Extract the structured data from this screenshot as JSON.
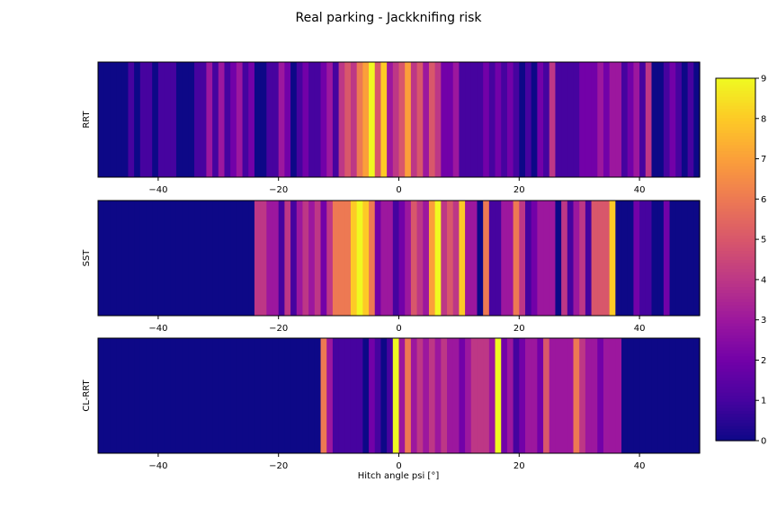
{
  "chart_data": {
    "type": "heatmap",
    "title": "Real parking - Jackknifing risk",
    "xlabel": "Hitch angle psi [°]",
    "xlim": [
      -50,
      50
    ],
    "xticks": [
      -40,
      -20,
      0,
      20,
      40
    ],
    "bin_width": 1,
    "colormap": "plasma",
    "colorbar": {
      "min": 0,
      "max": 9,
      "ticks": [
        0,
        1,
        2,
        3,
        4,
        5,
        6,
        7,
        8,
        9
      ]
    },
    "panels": [
      {
        "name": "RRT",
        "values": [
          0,
          0,
          0,
          0,
          0,
          1,
          0,
          1,
          1,
          0,
          1,
          1,
          1,
          0,
          0,
          0,
          1,
          1,
          3,
          1,
          3,
          1,
          2,
          3,
          1,
          2,
          0,
          0,
          1,
          1,
          3,
          2,
          0,
          1,
          2,
          1,
          1,
          2,
          3,
          1,
          4,
          5,
          4,
          6,
          7,
          9,
          5,
          8,
          3,
          4,
          5,
          7,
          4,
          5,
          3,
          5,
          4,
          2,
          2,
          3,
          1,
          1,
          1,
          1,
          2,
          1,
          2,
          1,
          2,
          1,
          0,
          1,
          0,
          2,
          1,
          4,
          1,
          1,
          1,
          1,
          2,
          2,
          2,
          3,
          2,
          3,
          3,
          1,
          2,
          3,
          1,
          4,
          0,
          0,
          1,
          2,
          1,
          0,
          1,
          0
        ]
      },
      {
        "name": "SST",
        "values": [
          0,
          0,
          0,
          0,
          0,
          0,
          0,
          0,
          0,
          0,
          0,
          0,
          0,
          0,
          0,
          0,
          0,
          0,
          0,
          0,
          0,
          0,
          0,
          0,
          0,
          0,
          4,
          4,
          3,
          3,
          1,
          4,
          1,
          3,
          4,
          3,
          4,
          2,
          4,
          6,
          6,
          6,
          8,
          9,
          8,
          6,
          2,
          3,
          3,
          1,
          2,
          3,
          5,
          4,
          3,
          7,
          9,
          4,
          5,
          4,
          8,
          3,
          3,
          0,
          6,
          1,
          1,
          3,
          3,
          6,
          4,
          1,
          2,
          3,
          3,
          3,
          0,
          4,
          1,
          3,
          4,
          1,
          5,
          5,
          5,
          8,
          0,
          0,
          0,
          2,
          1,
          1,
          0,
          0,
          2,
          0,
          0,
          0,
          0,
          0
        ]
      },
      {
        "name": "CL-RRT",
        "values": [
          0,
          0,
          0,
          0,
          0,
          0,
          0,
          0,
          0,
          0,
          0,
          0,
          0,
          0,
          0,
          0,
          0,
          0,
          0,
          0,
          0,
          0,
          0,
          0,
          0,
          0,
          0,
          0,
          0,
          0,
          0,
          0,
          0,
          0,
          0,
          0,
          0,
          6,
          3,
          1,
          1,
          1,
          1,
          1,
          0,
          2,
          1,
          0,
          1,
          9,
          3,
          6,
          3,
          4,
          3,
          4,
          3,
          4,
          3,
          3,
          2,
          3,
          4,
          4,
          4,
          3,
          9,
          2,
          3,
          1,
          2,
          3,
          3,
          2,
          5,
          3,
          3,
          3,
          3,
          6,
          4,
          3,
          3,
          2,
          3,
          3,
          3,
          0,
          0,
          0,
          0,
          0,
          0,
          0,
          0,
          0,
          0,
          0,
          0,
          0
        ]
      }
    ]
  }
}
